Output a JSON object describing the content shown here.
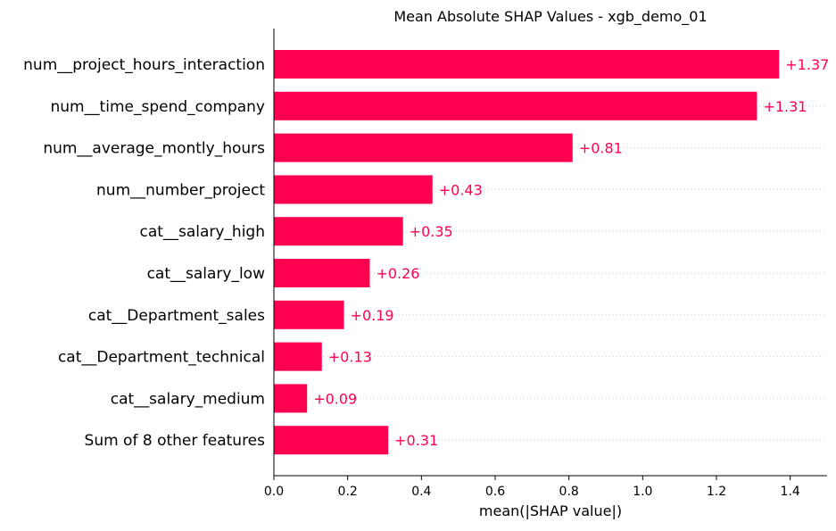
{
  "chart_data": {
    "type": "bar",
    "orientation": "horizontal",
    "title": "Mean Absolute SHAP Values - xgb_demo_01",
    "xlabel": "mean(|SHAP value|)",
    "ylabel": "",
    "xlim": [
      0,
      1.5
    ],
    "xticks": [
      0.0,
      0.2,
      0.4,
      0.6,
      0.8,
      1.0,
      1.2,
      1.4
    ],
    "xtick_labels": [
      "0.0",
      "0.2",
      "0.4",
      "0.6",
      "0.8",
      "1.0",
      "1.2",
      "1.4"
    ],
    "categories": [
      "num__project_hours_interaction",
      "num__time_spend_company",
      "num__average_montly_hours",
      "num__number_project",
      "cat__salary_high",
      "cat__salary_low",
      "cat__Department_sales",
      "cat__Department_technical",
      "cat__salary_medium",
      "Sum of 8 other features"
    ],
    "values": [
      1.37,
      1.31,
      0.81,
      0.43,
      0.35,
      0.26,
      0.19,
      0.13,
      0.09,
      0.31
    ],
    "value_labels": [
      "+1.37",
      "+1.31",
      "+0.81",
      "+0.43",
      "+0.35",
      "+0.26",
      "+0.19",
      "+0.13",
      "+0.09",
      "+0.31"
    ],
    "grid": false,
    "row_guides": "dotted",
    "colors": {
      "bar": "#ff0051",
      "label": "#ff0051",
      "axis": "#000000",
      "guide": "#cccccc"
    }
  }
}
